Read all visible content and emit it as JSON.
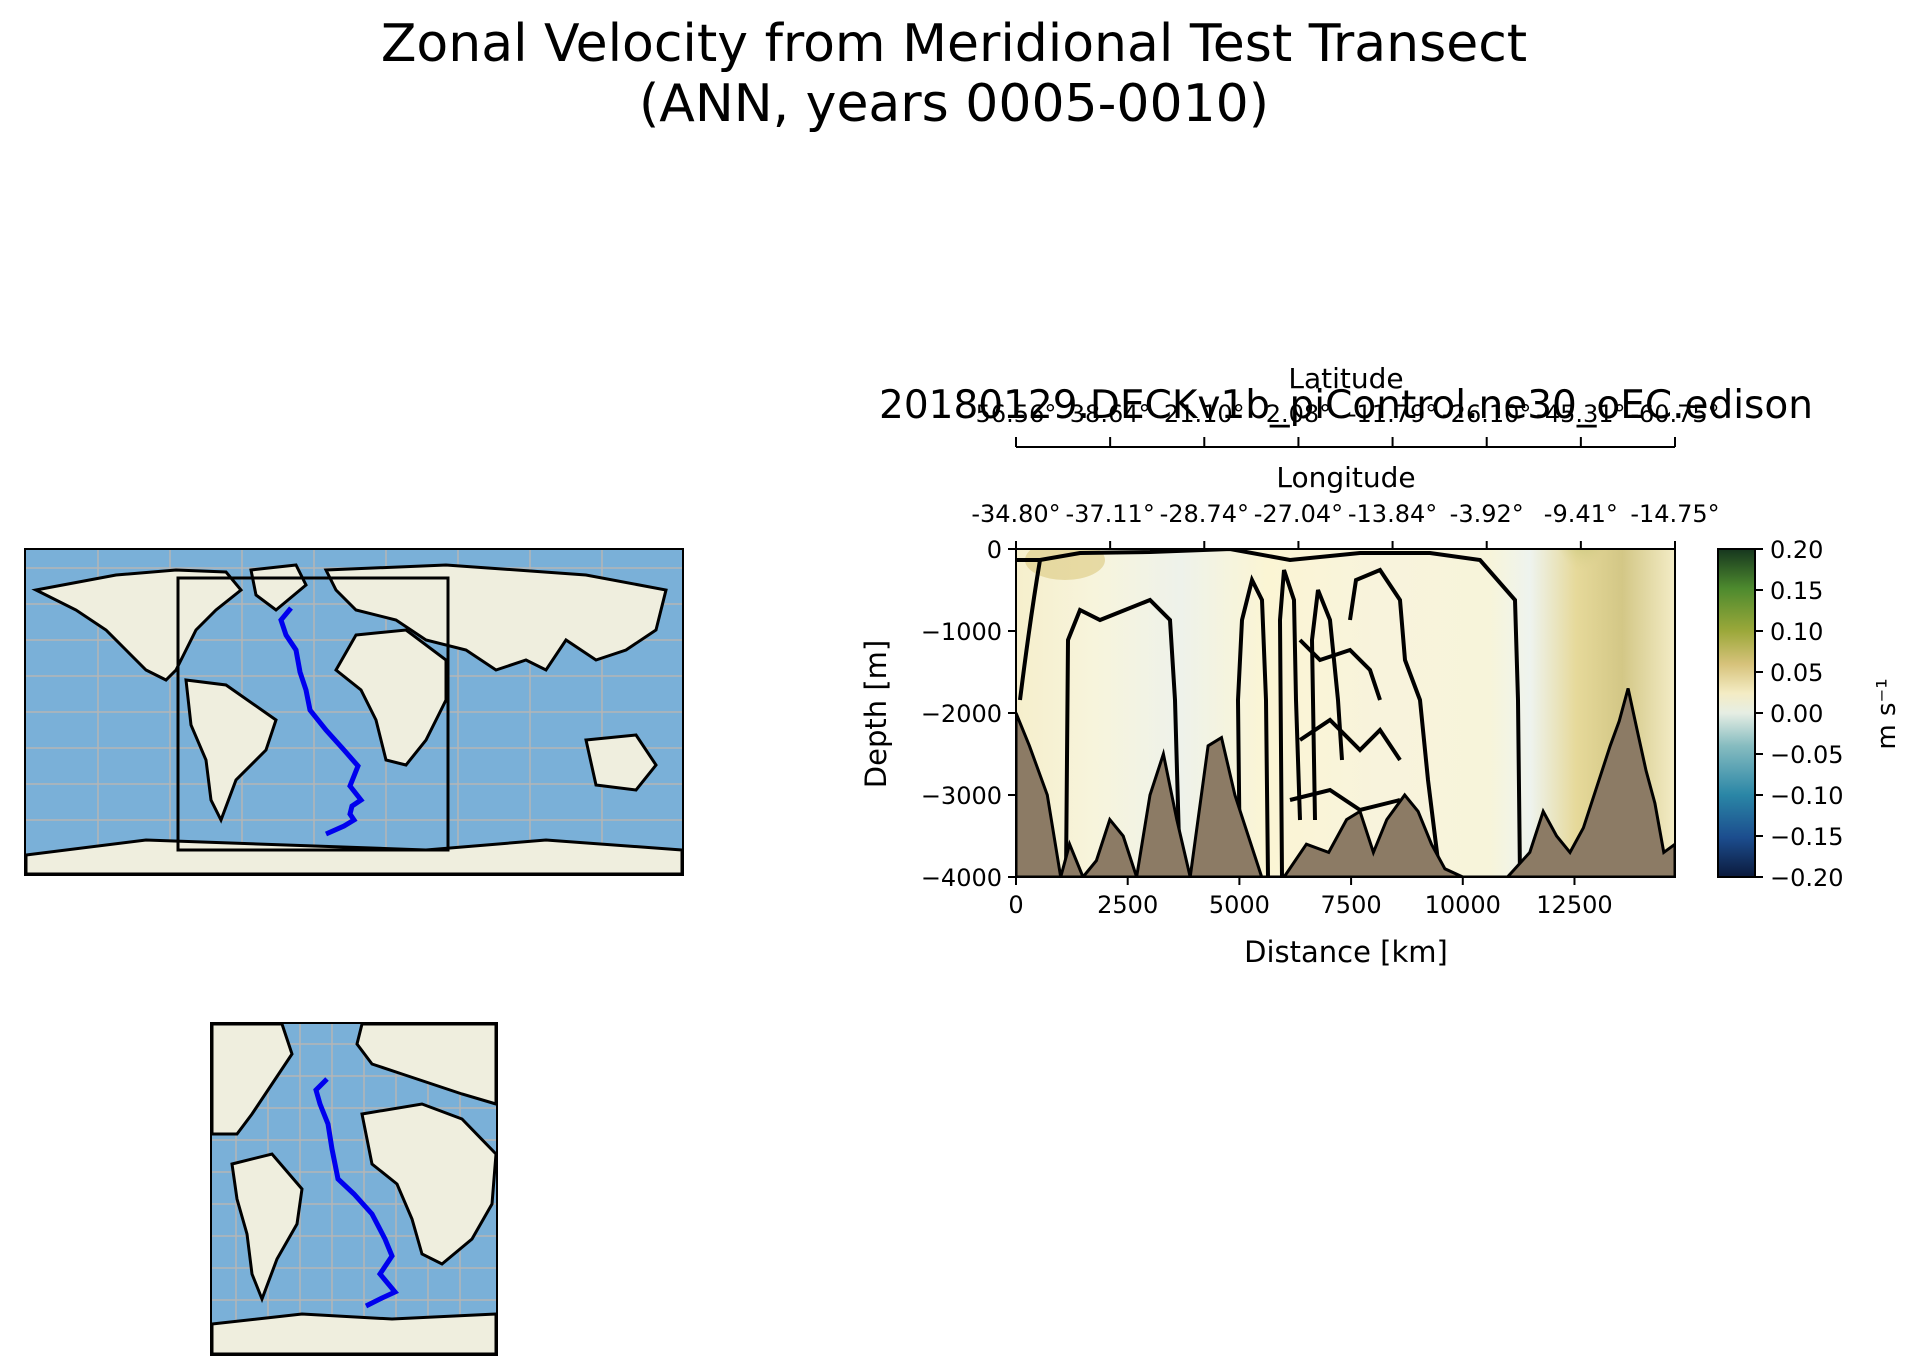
{
  "title_line1": "Zonal Velocity from Meridional Test Transect",
  "title_line2": "(ANN, years 0005-0010)",
  "chart_data": {
    "type": "heatmap",
    "subtitle": "20180129.DECKv1b_piControl.ne30_oEC.edison",
    "xlabel": "Distance [km]",
    "ylabel": "Depth [m]",
    "xlim": [
      0,
      14750
    ],
    "ylim": [
      -4000,
      0
    ],
    "x_ticks": [
      0,
      2500,
      5000,
      7500,
      10000,
      12500
    ],
    "y_ticks": [
      0,
      -1000,
      -2000,
      -3000,
      -4000
    ],
    "lat_axis_label": "Latitude",
    "lat_tick_labels": [
      "56.56°",
      "38.64°",
      "21.10°",
      "2.08°",
      "-11.79°",
      "-26.10°",
      "-45.31°",
      "-60.75°"
    ],
    "lon_axis_label": "Longitude",
    "lon_tick_labels": [
      "-34.80°",
      "-37.11°",
      "-28.74°",
      "-27.04°",
      "-13.84°",
      "-3.92°",
      "-9.41°",
      "-14.75°"
    ],
    "colorbar": {
      "label": "m s⁻¹",
      "min": -0.2,
      "max": 0.2,
      "ticks": [
        "0.20",
        "0.15",
        "0.10",
        "0.05",
        "0.00",
        "−0.05",
        "−0.10",
        "−0.15",
        "−0.20"
      ],
      "colors": [
        "#0b1a3c",
        "#1c4d8e",
        "#2a86a6",
        "#86bcc0",
        "#e6eee4",
        "#f4ecc4",
        "#d6c27a",
        "#9ba83a",
        "#4d8a2e",
        "#16361e"
      ]
    },
    "bathymetry_depth_m": [
      [
        0,
        -2000
      ],
      [
        300,
        -2400
      ],
      [
        700,
        -3000
      ],
      [
        1000,
        -4000
      ],
      [
        1200,
        -3600
      ],
      [
        1500,
        -4000
      ],
      [
        1800,
        -3800
      ],
      [
        2100,
        -3300
      ],
      [
        2400,
        -3500
      ],
      [
        2700,
        -4000
      ],
      [
        3000,
        -3000
      ],
      [
        3300,
        -2500
      ],
      [
        3600,
        -3300
      ],
      [
        3900,
        -4000
      ],
      [
        4300,
        -2400
      ],
      [
        4600,
        -2300
      ],
      [
        4900,
        -3000
      ],
      [
        5200,
        -3500
      ],
      [
        5500,
        -4000
      ],
      [
        6000,
        -4000
      ],
      [
        6500,
        -3600
      ],
      [
        7000,
        -3700
      ],
      [
        7400,
        -3300
      ],
      [
        7700,
        -3200
      ],
      [
        8000,
        -3700
      ],
      [
        8300,
        -3300
      ],
      [
        8700,
        -3000
      ],
      [
        9000,
        -3200
      ],
      [
        9300,
        -3600
      ],
      [
        9600,
        -3900
      ],
      [
        10000,
        -4000
      ],
      [
        11000,
        -4000
      ],
      [
        11500,
        -3700
      ],
      [
        11800,
        -3200
      ],
      [
        12100,
        -3500
      ],
      [
        12400,
        -3700
      ],
      [
        12700,
        -3400
      ],
      [
        13000,
        -2900
      ],
      [
        13300,
        -2400
      ],
      [
        13500,
        -2100
      ],
      [
        13700,
        -1700
      ],
      [
        13900,
        -2200
      ],
      [
        14100,
        -2700
      ],
      [
        14300,
        -3100
      ],
      [
        14500,
        -3700
      ],
      [
        14750,
        -3600
      ]
    ],
    "transect_lat_lon": [
      [
        56.56,
        -34.8
      ],
      [
        38.64,
        -37.11
      ],
      [
        21.1,
        -28.74
      ],
      [
        2.08,
        -27.04
      ],
      [
        -11.79,
        -13.84
      ],
      [
        -26.1,
        -3.92
      ],
      [
        -45.31,
        -9.41
      ],
      [
        -60.75,
        -14.75
      ]
    ]
  },
  "colors": {
    "transect": "#0000ee",
    "ocean": "#7ab0d8",
    "land": "#efeede",
    "bathymetry": "#8c7b65"
  }
}
